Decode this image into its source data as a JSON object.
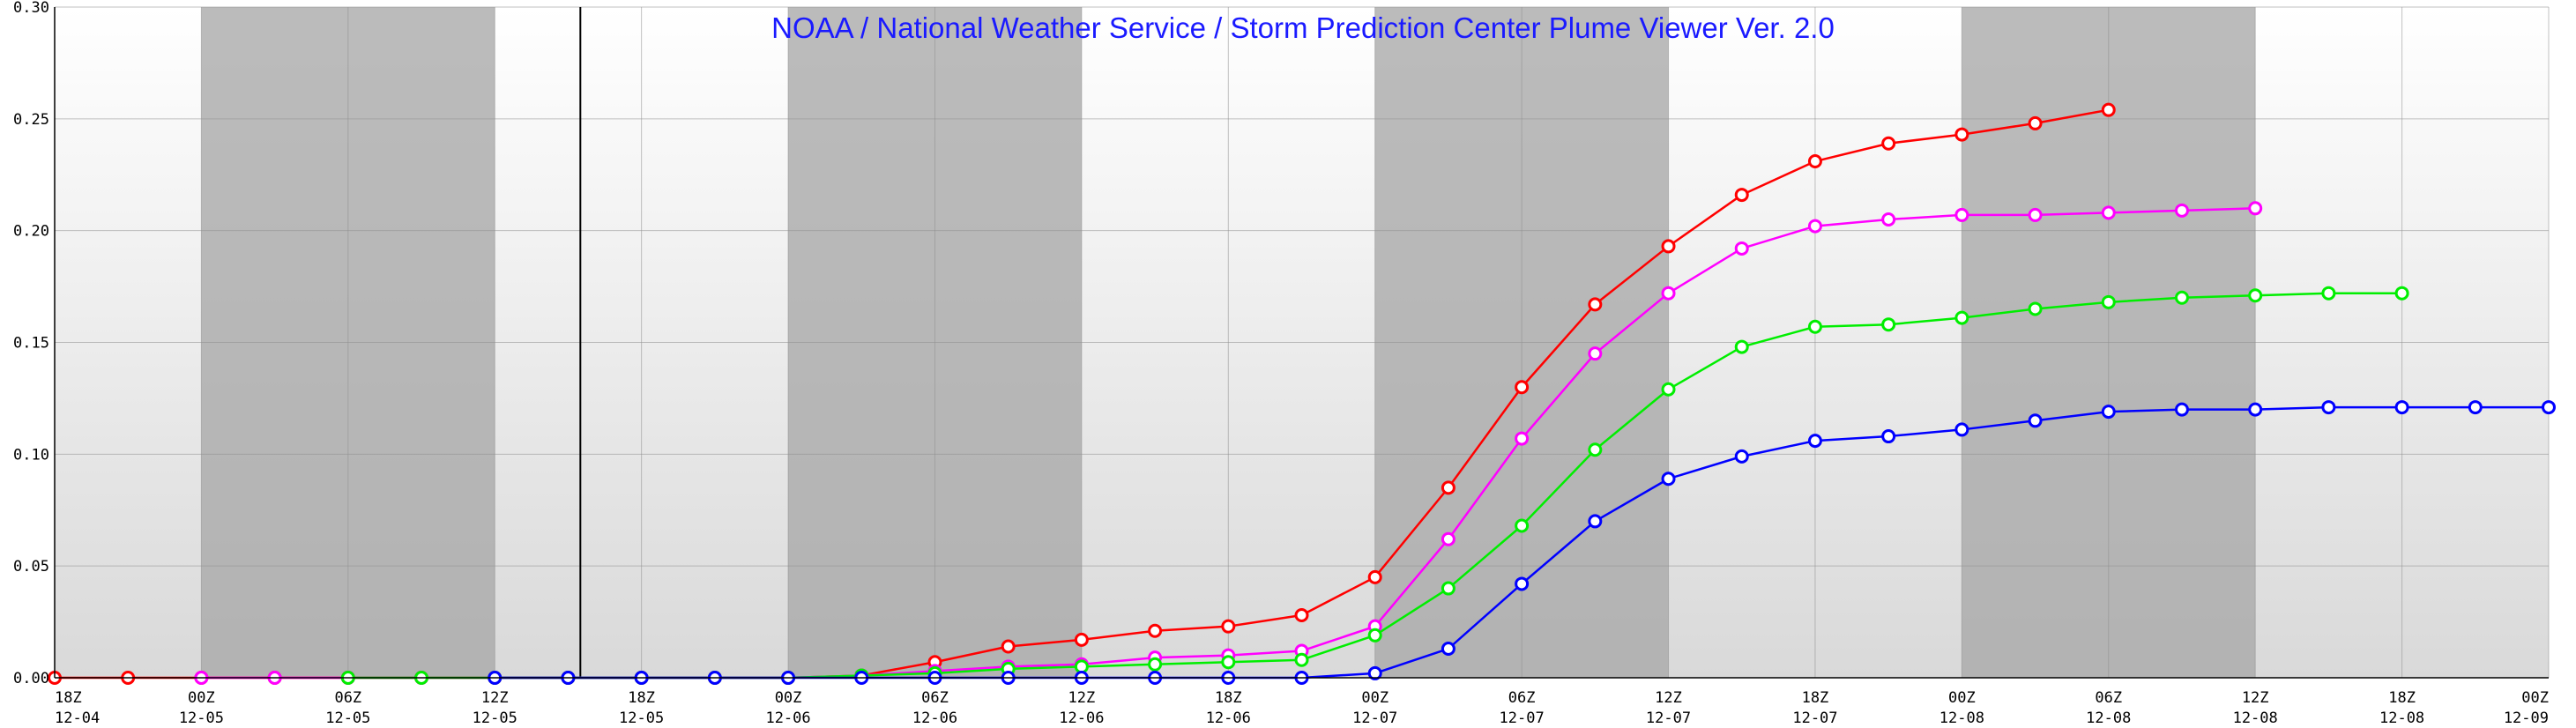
{
  "chart_data": {
    "type": "line",
    "title": "NOAA / National Weather Service / Storm Prediction Center Plume Viewer Ver. 2.0",
    "xlabel": "",
    "ylabel": "",
    "ylim": [
      0,
      0.3
    ],
    "y_ticks": [
      0.0,
      0.05,
      0.1,
      0.15,
      0.2,
      0.25,
      0.3
    ],
    "y_tick_labels": [
      "0.00",
      "0.05",
      "0.10",
      "0.15",
      "0.20",
      "0.25",
      "0.30"
    ],
    "x_unit_note": "x values are forecast hours from 18Z 12-04",
    "xlim": [
      0,
      102
    ],
    "x_ticks": [
      {
        "x": 0,
        "line1": "18Z",
        "line2": "12-04"
      },
      {
        "x": 6,
        "line1": "00Z",
        "line2": "12-05"
      },
      {
        "x": 12,
        "line1": "06Z",
        "line2": "12-05"
      },
      {
        "x": 18,
        "line1": "12Z",
        "line2": "12-05"
      },
      {
        "x": 24,
        "line1": "18Z",
        "line2": "12-05"
      },
      {
        "x": 30,
        "line1": "00Z",
        "line2": "12-06"
      },
      {
        "x": 36,
        "line1": "06Z",
        "line2": "12-06"
      },
      {
        "x": 42,
        "line1": "12Z",
        "line2": "12-06"
      },
      {
        "x": 48,
        "line1": "18Z",
        "line2": "12-06"
      },
      {
        "x": 54,
        "line1": "00Z",
        "line2": "12-07"
      },
      {
        "x": 60,
        "line1": "06Z",
        "line2": "12-07"
      },
      {
        "x": 66,
        "line1": "12Z",
        "line2": "12-07"
      },
      {
        "x": 72,
        "line1": "18Z",
        "line2": "12-07"
      },
      {
        "x": 78,
        "line1": "00Z",
        "line2": "12-08"
      },
      {
        "x": 84,
        "line1": "06Z",
        "line2": "12-08"
      },
      {
        "x": 90,
        "line1": "12Z",
        "line2": "12-08"
      },
      {
        "x": 96,
        "line1": "18Z",
        "line2": "12-08"
      },
      {
        "x": 102,
        "line1": "00Z",
        "line2": "12-09"
      }
    ],
    "night_shading": [
      [
        6,
        18
      ],
      [
        30,
        42
      ],
      [
        54,
        66
      ],
      [
        78,
        90
      ]
    ],
    "current_time_marker": 21.5,
    "grid": true,
    "legend": "none",
    "series": [
      {
        "color": "#ff0000",
        "x": [
          0,
          3,
          6,
          9,
          12,
          15,
          18,
          21,
          24,
          27,
          30,
          33,
          36,
          39,
          42,
          45,
          48,
          51,
          54,
          57,
          60,
          63,
          66,
          69,
          72,
          75,
          78,
          81,
          84
        ],
        "values": [
          0.0,
          0.0,
          0.0,
          0.0,
          0.0,
          0.0,
          0.0,
          0.0,
          0.0,
          0.0,
          0.0,
          0.001,
          0.007,
          0.014,
          0.017,
          0.021,
          0.023,
          0.028,
          0.045,
          0.085,
          0.13,
          0.167,
          0.193,
          0.216,
          0.231,
          0.239,
          0.243,
          0.248,
          0.254
        ]
      },
      {
        "color": "#ff00ff",
        "x": [
          6,
          9,
          12,
          15,
          18,
          21,
          24,
          27,
          30,
          33,
          36,
          39,
          42,
          45,
          48,
          51,
          54,
          57,
          60,
          63,
          66,
          69,
          72,
          75,
          78,
          81,
          84,
          87,
          90
        ],
        "values": [
          0.0,
          0.0,
          0.0,
          0.0,
          0.0,
          0.0,
          0.0,
          0.0,
          0.0,
          0.001,
          0.003,
          0.005,
          0.006,
          0.009,
          0.01,
          0.012,
          0.023,
          0.062,
          0.107,
          0.145,
          0.172,
          0.192,
          0.202,
          0.205,
          0.207,
          0.207,
          0.208,
          0.209,
          0.21
        ]
      },
      {
        "color": "#00ee00",
        "x": [
          12,
          15,
          18,
          21,
          24,
          27,
          30,
          33,
          36,
          39,
          42,
          45,
          48,
          51,
          54,
          57,
          60,
          63,
          66,
          69,
          72,
          75,
          78,
          81,
          84,
          87,
          90,
          93,
          96
        ],
        "values": [
          0.0,
          0.0,
          0.0,
          0.0,
          0.0,
          0.0,
          0.0,
          0.001,
          0.002,
          0.004,
          0.005,
          0.006,
          0.007,
          0.008,
          0.019,
          0.04,
          0.068,
          0.102,
          0.129,
          0.148,
          0.157,
          0.158,
          0.161,
          0.165,
          0.168,
          0.17,
          0.171,
          0.172,
          0.172
        ]
      },
      {
        "color": "#0000ff",
        "x": [
          18,
          21,
          24,
          27,
          30,
          33,
          36,
          39,
          42,
          45,
          48,
          51,
          54,
          57,
          60,
          63,
          66,
          69,
          72,
          75,
          78,
          81,
          84,
          87,
          90,
          93,
          96,
          99,
          102
        ],
        "values": [
          0.0,
          0.0,
          0.0,
          0.0,
          0.0,
          0.0,
          0.0,
          0.0,
          0.0,
          0.0,
          0.0,
          0.0,
          0.002,
          0.013,
          0.042,
          0.07,
          0.089,
          0.099,
          0.106,
          0.108,
          0.111,
          0.115,
          0.119,
          0.12,
          0.12,
          0.121,
          0.121,
          0.121,
          0.121
        ]
      }
    ]
  }
}
